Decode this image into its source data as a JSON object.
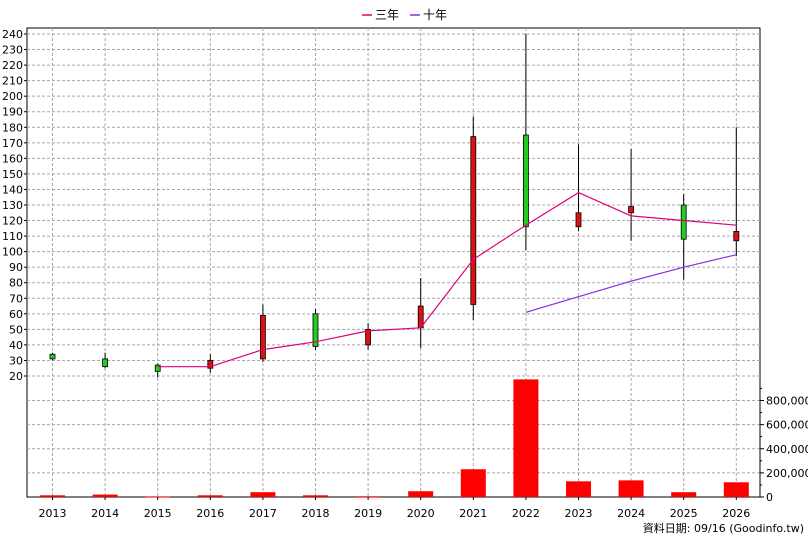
{
  "chart_data": {
    "type": "candlestick",
    "legend": [
      {
        "name": "三年",
        "color": "#e0007a"
      },
      {
        "name": "十年",
        "color": "#8a2be2"
      }
    ],
    "years": [
      "2013",
      "2014",
      "2015",
      "2016",
      "2017",
      "2018",
      "2019",
      "2020",
      "2021",
      "2022",
      "2023",
      "2024",
      "2025",
      "2026"
    ],
    "price_axis": {
      "ticks": [
        20,
        30,
        40,
        50,
        60,
        70,
        80,
        90,
        100,
        110,
        120,
        130,
        140,
        150,
        160,
        170,
        180,
        190,
        200,
        210,
        220,
        230,
        240
      ],
      "range": [
        20,
        240
      ]
    },
    "candles": [
      {
        "year": "2013",
        "open": 31,
        "close": 34,
        "high": 35,
        "low": 30
      },
      {
        "year": "2014",
        "open": 26,
        "close": 31,
        "high": 35,
        "low": 25
      },
      {
        "year": "2015",
        "open": 23,
        "close": 27,
        "high": 28,
        "low": 19
      },
      {
        "year": "2016",
        "open": 30,
        "close": 25,
        "high": 34,
        "low": 22
      },
      {
        "year": "2017",
        "open": 59,
        "close": 31,
        "high": 66,
        "low": 29
      },
      {
        "year": "2018",
        "open": 39,
        "close": 60,
        "high": 63,
        "low": 37
      },
      {
        "year": "2019",
        "open": 50,
        "close": 40,
        "high": 54,
        "low": 37
      },
      {
        "year": "2020",
        "open": 65,
        "close": 51,
        "high": 83,
        "low": 38
      },
      {
        "year": "2021",
        "open": 174,
        "close": 66,
        "high": 187,
        "low": 56
      },
      {
        "year": "2022",
        "open": 116,
        "close": 175,
        "high": 240,
        "low": 101
      },
      {
        "year": "2023",
        "open": 125,
        "close": 116,
        "high": 169,
        "low": 113
      },
      {
        "year": "2024",
        "open": 129,
        "close": 125,
        "high": 166,
        "low": 107
      },
      {
        "year": "2025",
        "open": 108,
        "close": 130,
        "high": 137,
        "low": 82
      },
      {
        "year": "2026",
        "open": 113,
        "close": 107,
        "high": 180,
        "low": 97
      }
    ],
    "three_year_avg": [
      {
        "year": "2015",
        "value": 26
      },
      {
        "year": "2016",
        "value": 26
      },
      {
        "year": "2017",
        "value": 37
      },
      {
        "year": "2018",
        "value": 42
      },
      {
        "year": "2019",
        "value": 49
      },
      {
        "year": "2020",
        "value": 51
      },
      {
        "year": "2021",
        "value": 95
      },
      {
        "year": "2022",
        "value": 117
      },
      {
        "year": "2023",
        "value": 138
      },
      {
        "year": "2024",
        "value": 123
      },
      {
        "year": "2025",
        "value": 120
      },
      {
        "year": "2026",
        "value": 117
      }
    ],
    "ten_year_avg": [
      {
        "year": "2022",
        "value": 61
      },
      {
        "year": "2023",
        "value": 71
      },
      {
        "year": "2024",
        "value": 81
      },
      {
        "year": "2025",
        "value": 90
      },
      {
        "year": "2026",
        "value": 98
      }
    ],
    "volume_axis": {
      "ticks": [
        0,
        200000,
        400000,
        600000,
        800000
      ],
      "tick_labels": [
        "0",
        "200,000",
        "400,000",
        "600,000",
        "800,000"
      ],
      "range": [
        0,
        980000
      ]
    },
    "volume": [
      {
        "year": "2013",
        "value": 14000
      },
      {
        "year": "2014",
        "value": 20000
      },
      {
        "year": "2015",
        "value": 5000
      },
      {
        "year": "2016",
        "value": 14000
      },
      {
        "year": "2017",
        "value": 40000
      },
      {
        "year": "2018",
        "value": 14000
      },
      {
        "year": "2019",
        "value": 6000
      },
      {
        "year": "2020",
        "value": 48000
      },
      {
        "year": "2021",
        "value": 230000
      },
      {
        "year": "2022",
        "value": 975000
      },
      {
        "year": "2023",
        "value": 130000
      },
      {
        "year": "2024",
        "value": 138000
      },
      {
        "year": "2025",
        "value": 40000
      },
      {
        "year": "2026",
        "value": 122000
      }
    ],
    "grid": true,
    "up_color": "#22cc22",
    "down_color": "#dd1111",
    "volume_color": "#ff0000"
  },
  "footer": {
    "text": "資料日期: 09/16  (Goodinfo.tw)"
  }
}
